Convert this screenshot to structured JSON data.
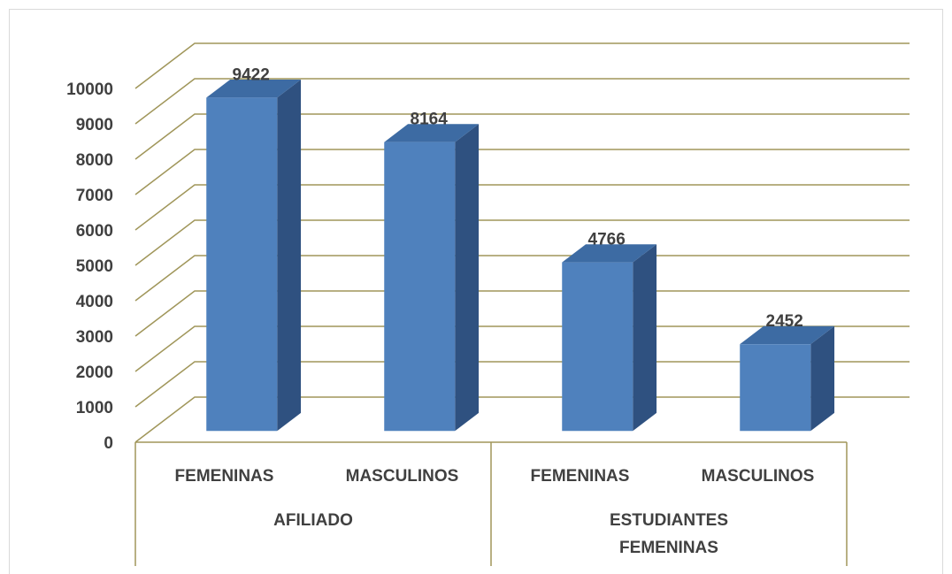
{
  "chart_data": {
    "type": "bar3d",
    "categories": [
      "FEMENINAS",
      "MASCULINOS",
      "FEMENINAS",
      "MASCULINOS"
    ],
    "groups": [
      "AFILIADO",
      "ESTUDIANTES FEMENINAS"
    ],
    "values": [
      9422,
      8164,
      4766,
      2452
    ],
    "color": "#4f81bd",
    "ylim": [
      0,
      10000
    ],
    "yticks": [
      0,
      1000,
      2000,
      3000,
      4000,
      5000,
      6000,
      7000,
      8000,
      9000,
      10000
    ],
    "grid": true
  }
}
